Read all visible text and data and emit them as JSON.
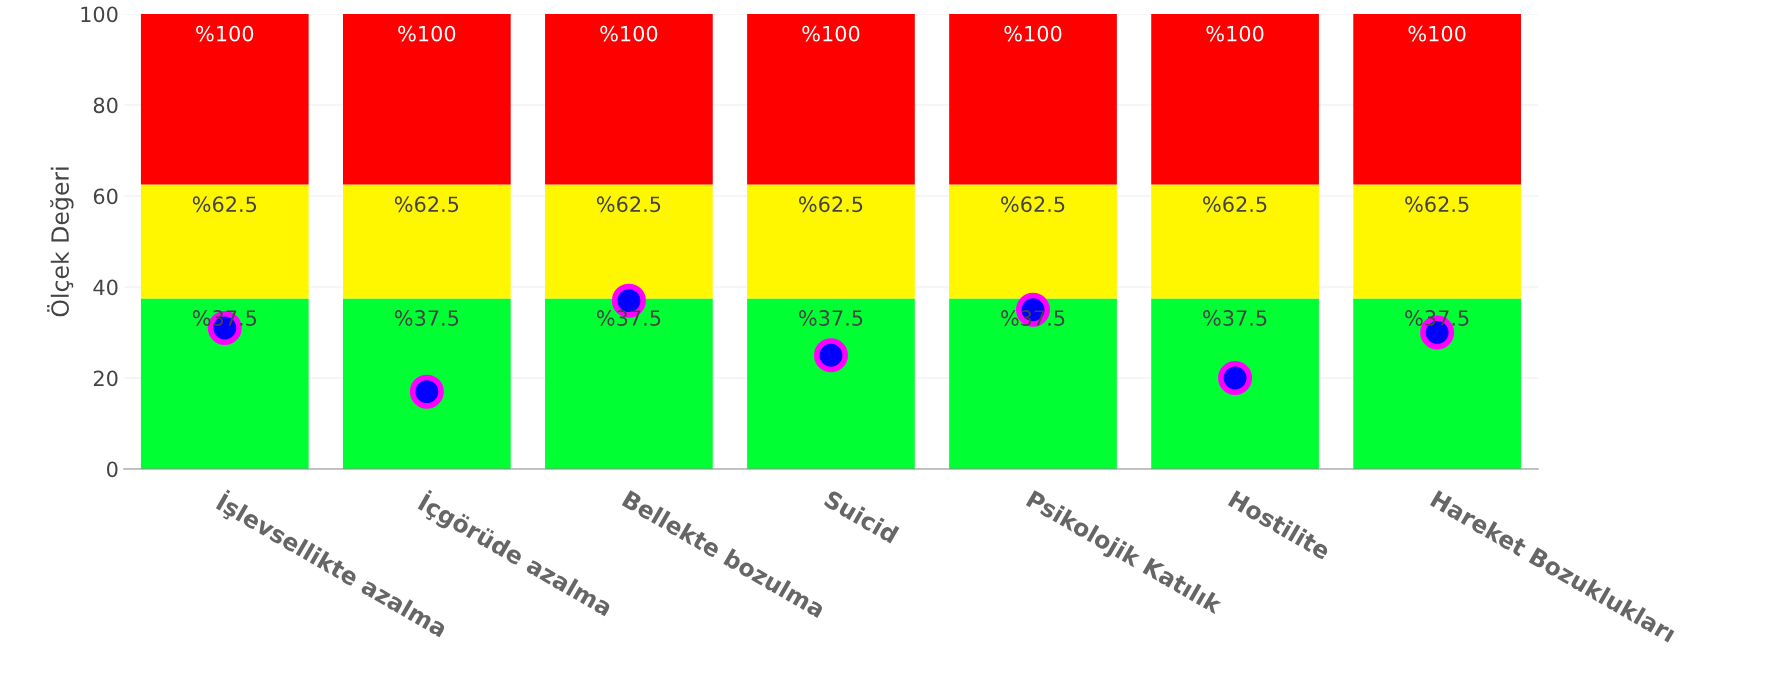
{
  "chart_data": {
    "type": "bar",
    "stacked": true,
    "ylabel": "Ölçek Değeri",
    "categories": [
      "İşlevsellikte azalma",
      "İçgörüde azalma",
      "Bellekte bozulma",
      "Suicid",
      "Psikolojik Katılık",
      "Hostilite",
      "Hareket Bozuklukları"
    ],
    "series": [
      {
        "color": "#00ff33",
        "values": [
          37.5,
          37.5,
          37.5,
          37.5,
          37.5,
          37.5,
          37.5
        ]
      },
      {
        "color": "#fff700",
        "values": [
          25,
          25,
          25,
          25,
          25,
          25,
          25
        ]
      },
      {
        "color": "#ff0000",
        "values": [
          37.5,
          37.5,
          37.5,
          37.5,
          37.5,
          37.5,
          37.5
        ]
      },
      {
        "type": "scatter",
        "color": "#0000ff",
        "x": [
          "İşlevsellikte azalma",
          "İçgörüde azalma",
          "Bellekte bozulma",
          "Suicid",
          "Psikolojik Katılık",
          "Hostilite",
          "Hareket Bozuklukları"
        ],
        "values": [
          31,
          17,
          37,
          25,
          35,
          20,
          30
        ]
      }
    ],
    "annotations": [
      {
        "text": "%37.5",
        "x": "İşlevsellikte azalma",
        "y": 37.5
      },
      {
        "text": "%37.5",
        "x": "İçgörüde azalma",
        "y": 37.5
      },
      {
        "text": "%37.5",
        "x": "Bellekte bozulma",
        "y": 37.5
      },
      {
        "text": "%37.5",
        "x": "Suicid",
        "y": 37.5
      },
      {
        "text": "%37.5",
        "x": "Psikolojik Katılık",
        "y": 37.5
      },
      {
        "text": "%37.5",
        "x": "Hostilite",
        "y": 37.5
      },
      {
        "text": "%37.5",
        "x": "Hareket Bozuklukları",
        "y": 37.5
      },
      {
        "text": "%62.5",
        "x": "İşlevsellikte azalma",
        "y": 62.5
      },
      {
        "text": "%62.5",
        "x": "İçgörüde azalma",
        "y": 62.5
      },
      {
        "text": "%62.5",
        "x": "Bellekte bozulma",
        "y": 62.5
      },
      {
        "text": "%62.5",
        "x": "Suicid",
        "y": 62.5
      },
      {
        "text": "%62.5",
        "x": "Psikolojik Katılık",
        "y": 62.5
      },
      {
        "text": "%62.5",
        "x": "Hostilite",
        "y": 62.5
      },
      {
        "text": "%62.5",
        "x": "Hareket Bozuklukları",
        "y": 62.5
      },
      {
        "text": "%100",
        "x": "İşlevsellikte azalma",
        "y": 100
      },
      {
        "text": "%100",
        "x": "İçgörüde azalma",
        "y": 100
      },
      {
        "text": "%100",
        "x": "Bellekte bozulma",
        "y": 100
      },
      {
        "text": "%100",
        "x": "Suicid",
        "y": 100
      },
      {
        "text": "%100",
        "x": "Psikolojik Katılık",
        "y": 100
      },
      {
        "text": "%100",
        "x": "Hostilite",
        "y": 100
      },
      {
        "text": "%100",
        "x": "Hareket Bozuklukları",
        "y": 100
      }
    ],
    "ylim": [
      0,
      100
    ],
    "yticks": [
      0,
      20,
      40,
      60,
      80,
      100
    ],
    "grid": "y",
    "marker": "circle"
  }
}
